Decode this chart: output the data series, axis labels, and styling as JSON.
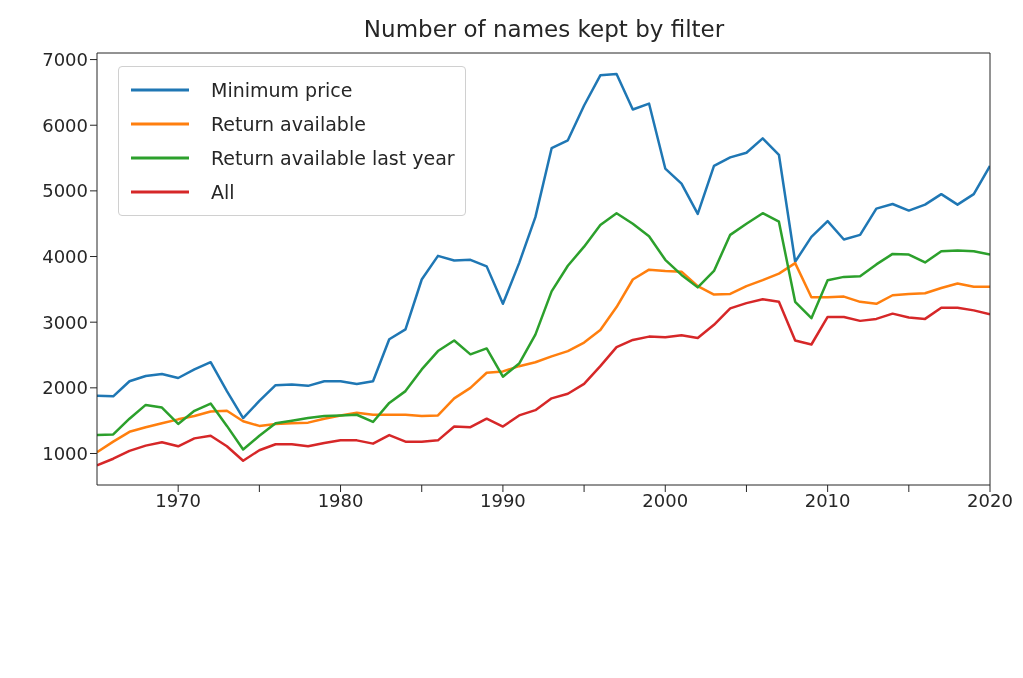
{
  "chart_data": {
    "type": "line",
    "title": "Number of names kept by filter",
    "x": [
      1965,
      1966,
      1967,
      1968,
      1969,
      1970,
      1971,
      1972,
      1973,
      1974,
      1975,
      1976,
      1977,
      1978,
      1979,
      1980,
      1981,
      1982,
      1983,
      1984,
      1985,
      1986,
      1987,
      1988,
      1989,
      1990,
      1991,
      1992,
      1993,
      1994,
      1995,
      1996,
      1997,
      1998,
      1999,
      2000,
      2001,
      2002,
      2003,
      2004,
      2005,
      2006,
      2007,
      2008,
      2009,
      2010,
      2011,
      2012,
      2013,
      2014,
      2015,
      2016,
      2017,
      2018,
      2019,
      2020
    ],
    "series": [
      {
        "name": "Minimum price",
        "color": "#1f77b4",
        "values": [
          1880,
          1870,
          2100,
          2180,
          2210,
          2150,
          2280,
          2390,
          1950,
          1540,
          1800,
          2040,
          2050,
          2030,
          2100,
          2100,
          2060,
          2100,
          2740,
          2890,
          3650,
          4010,
          3940,
          3950,
          3850,
          3280,
          3900,
          4600,
          5650,
          5770,
          6300,
          6760,
          6780,
          6240,
          6330,
          5340,
          5110,
          4650,
          5380,
          5510,
          5580,
          5800,
          5550,
          3920,
          4300,
          4540,
          4260,
          4330,
          4730,
          4800,
          4700,
          4790,
          4950,
          4790,
          4950,
          5380
        ]
      },
      {
        "name": "Return available",
        "color": "#ff7f0e",
        "values": [
          1020,
          1180,
          1330,
          1400,
          1460,
          1520,
          1570,
          1640,
          1650,
          1490,
          1420,
          1450,
          1460,
          1470,
          1530,
          1580,
          1620,
          1590,
          1590,
          1590,
          1570,
          1580,
          1840,
          2000,
          2230,
          2250,
          2330,
          2390,
          2480,
          2560,
          2690,
          2880,
          3230,
          3650,
          3800,
          3780,
          3770,
          3550,
          3420,
          3430,
          3550,
          3640,
          3740,
          3900,
          3380,
          3380,
          3390,
          3310,
          3280,
          3410,
          3430,
          3440,
          3520,
          3590,
          3540,
          3540
        ]
      },
      {
        "name": "Return available last year",
        "color": "#2ca02c",
        "values": [
          1280,
          1290,
          1530,
          1740,
          1700,
          1450,
          1650,
          1760,
          1420,
          1060,
          1270,
          1460,
          1500,
          1540,
          1570,
          1580,
          1590,
          1480,
          1770,
          1950,
          2280,
          2560,
          2720,
          2510,
          2600,
          2170,
          2370,
          2810,
          3470,
          3860,
          4150,
          4480,
          4660,
          4500,
          4310,
          3950,
          3720,
          3530,
          3780,
          4330,
          4500,
          4660,
          4530,
          3310,
          3060,
          3640,
          3690,
          3700,
          3880,
          4040,
          4030,
          3910,
          4080,
          4090,
          4080,
          4030
        ]
      },
      {
        "name": "All",
        "color": "#d62728",
        "values": [
          820,
          920,
          1040,
          1120,
          1170,
          1110,
          1230,
          1270,
          1110,
          890,
          1050,
          1140,
          1140,
          1110,
          1160,
          1200,
          1200,
          1150,
          1280,
          1180,
          1180,
          1200,
          1410,
          1400,
          1530,
          1410,
          1580,
          1660,
          1840,
          1910,
          2060,
          2330,
          2620,
          2730,
          2780,
          2770,
          2800,
          2760,
          2960,
          3210,
          3290,
          3350,
          3310,
          2720,
          2660,
          3080,
          3080,
          3020,
          3050,
          3130,
          3070,
          3050,
          3220,
          3220,
          3180,
          3120
        ]
      }
    ],
    "xlim": [
      1965,
      2020
    ],
    "xticks": [
      1970,
      {
        "value": 1975,
        "label": null
      },
      1980,
      {
        "value": 1985,
        "label": null
      },
      1990,
      {
        "value": 1995,
        "label": null
      },
      2000,
      {
        "value": 2005,
        "label": null
      },
      2010,
      {
        "value": 2015,
        "label": null
      },
      2020
    ],
    "ylim": [
      520,
      7100
    ],
    "yticks": [
      1000,
      2000,
      3000,
      4000,
      5000,
      6000,
      7000
    ],
    "grid": false,
    "legend": "top left",
    "marker": "none",
    "line_style": "solid"
  }
}
